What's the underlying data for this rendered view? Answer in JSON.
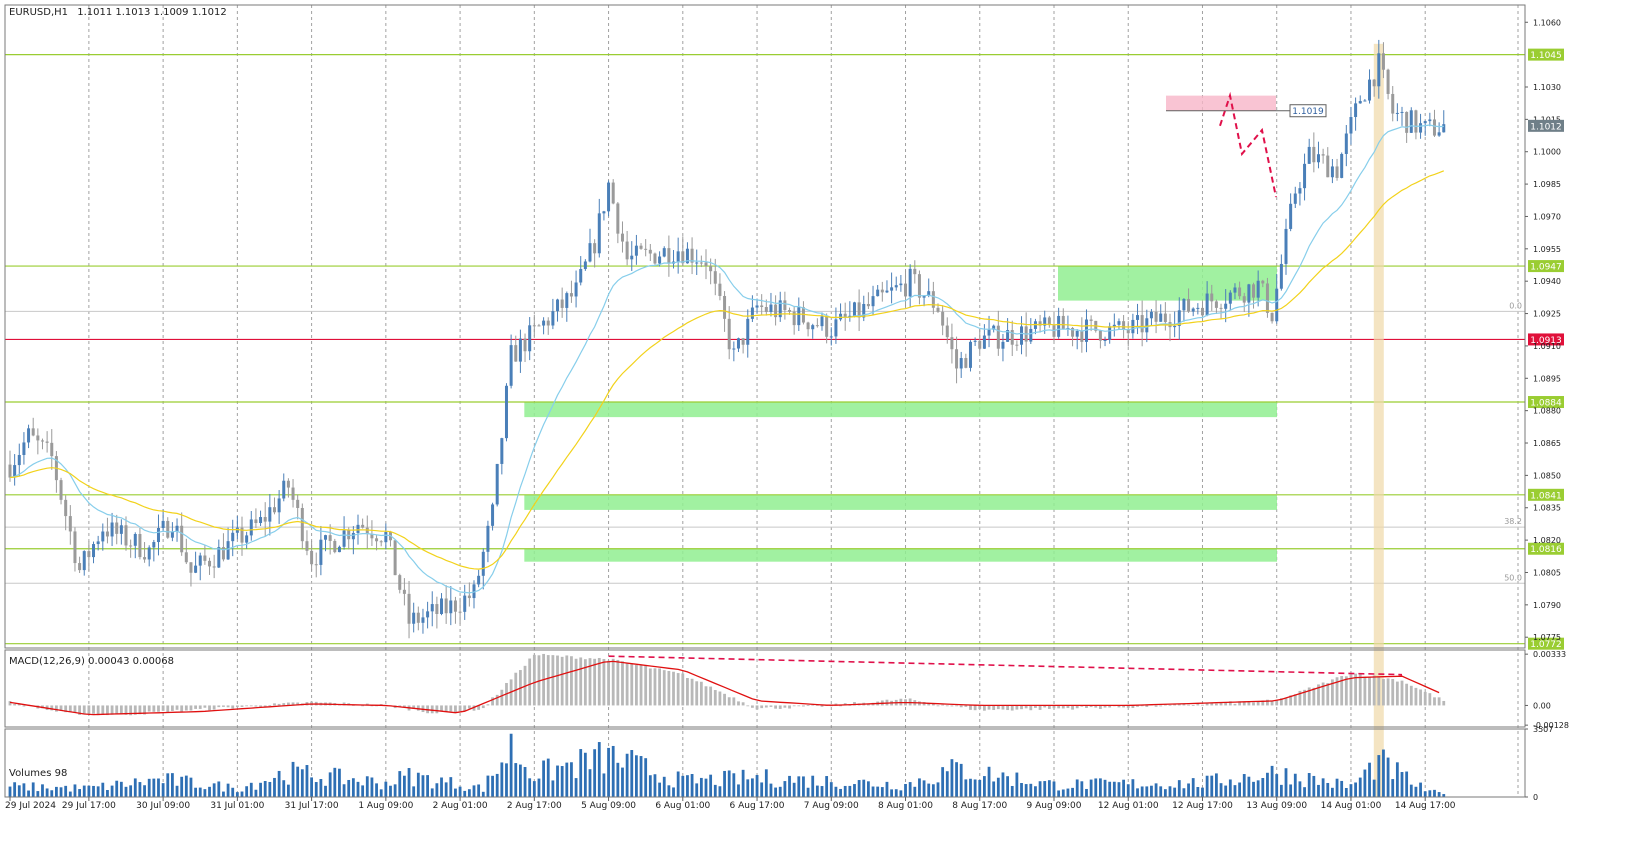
{
  "header": {
    "symbol": "EURUSD,H1",
    "ohlc": "1.1011 1.1013 1.1009 1.1012"
  },
  "colors": {
    "level_line": "#9acd32",
    "pivot_line": "#e0103a",
    "zone_fill": "#90ee90",
    "sell_zone_fill": "#f7b5c8",
    "forecast": "#e0104a",
    "ema_fast": "#87ceeb",
    "ema_slow": "#f2d21b",
    "bull_candle": "#4a7fb8",
    "bear_candle": "#9a9a9a",
    "macd_signal": "#e01010",
    "macd_hist": "#b8b8b8",
    "volume_bar": "#2e6fb4",
    "highlight_bar": "#f0d8a8",
    "price_badge": "#6f7f88"
  },
  "chart_data": [
    {
      "type": "candlestick",
      "title": "EURUSD,H1",
      "y_ticks": [
        "1.1060",
        "1.1045",
        "1.1030",
        "1.1015",
        "1.1012",
        "1.1000",
        "1.0985",
        "1.0970",
        "1.0955",
        "1.0940",
        "1.0925",
        "1.0910",
        "1.0895",
        "1.0880",
        "1.0865",
        "1.0850",
        "1.0835",
        "1.0820",
        "1.0805",
        "1.0790",
        "1.0775"
      ],
      "ylim": [
        1.077,
        1.1068
      ],
      "x_tick_labels": [
        "29 Jul 2024",
        "29 Jul 17:00",
        "30 Jul 09:00",
        "31 Jul 01:00",
        "31 Jul 17:00",
        "1 Aug 09:00",
        "2 Aug 01:00",
        "2 Aug 17:00",
        "5 Aug 09:00",
        "6 Aug 01:00",
        "6 Aug 17:00",
        "7 Aug 09:00",
        "8 Aug 01:00",
        "8 Aug 17:00",
        "9 Aug 09:00",
        "12 Aug 01:00",
        "12 Aug 17:00",
        "13 Aug 09:00",
        "14 Aug 01:00",
        "14 Aug 17:00"
      ],
      "levels": [
        {
          "label": "1.1045",
          "value": 1.1045,
          "kind": "resistance"
        },
        {
          "label": "1.0947",
          "value": 1.0947,
          "kind": "resistance"
        },
        {
          "label": "1.0913",
          "value": 1.0913,
          "kind": "pivot"
        },
        {
          "label": "1.0884",
          "value": 1.0884,
          "kind": "support"
        },
        {
          "label": "1.0841",
          "value": 1.0841,
          "kind": "support"
        },
        {
          "label": "1.0816",
          "value": 1.0816,
          "kind": "support"
        },
        {
          "label": "1.0772",
          "value": 1.0772,
          "kind": "support"
        }
      ],
      "current_price_label": "1.1012",
      "target_label": "1.1019",
      "fibo_labels": [
        "0.0",
        "38.2",
        "50.0"
      ],
      "zones": [
        {
          "kind": "support",
          "from": 1.0931,
          "to": 1.0947
        },
        {
          "kind": "support",
          "from": 1.0877,
          "to": 1.0884
        },
        {
          "kind": "support",
          "from": 1.0834,
          "to": 1.0841
        },
        {
          "kind": "support",
          "from": 1.081,
          "to": 1.0816
        },
        {
          "kind": "resistance",
          "from": 1.1019,
          "to": 1.1026
        }
      ],
      "forecast_path": [
        1.1012,
        1.1026,
        1.0999,
        1.101,
        1.0979
      ],
      "anchors": [
        {
          "x": "29 Jul 00:00",
          "price": 1.0855
        },
        {
          "x": "29 Jul 04:00",
          "price": 1.0868
        },
        {
          "x": "29 Jul 09:00",
          "price": 1.0858
        },
        {
          "x": "29 Jul 15:00",
          "price": 1.0806
        },
        {
          "x": "29 Jul 20:00",
          "price": 1.0826
        },
        {
          "x": "30 Jul 06:00",
          "price": 1.0815
        },
        {
          "x": "30 Jul 11:00",
          "price": 1.083
        },
        {
          "x": "30 Jul 15:00",
          "price": 1.0805
        },
        {
          "x": "31 Jul 06:00",
          "price": 1.0828
        },
        {
          "x": "31 Jul 12:00",
          "price": 1.0845
        },
        {
          "x": "31 Jul 17:00",
          "price": 1.0812
        },
        {
          "x": "1 Aug 03:00",
          "price": 1.0828
        },
        {
          "x": "1 Aug 09:00",
          "price": 1.0822
        },
        {
          "x": "1 Aug 14:00",
          "price": 1.0782
        },
        {
          "x": "1 Aug 22:00",
          "price": 1.0788
        },
        {
          "x": "2 Aug 04:00",
          "price": 1.0795
        },
        {
          "x": "2 Aug 08:00",
          "price": 1.0832
        },
        {
          "x": "2 Aug 12:00",
          "price": 1.0905
        },
        {
          "x": "2 Aug 15:00",
          "price": 1.0912
        },
        {
          "x": "5 Aug 02:00",
          "price": 1.0935
        },
        {
          "x": "5 Aug 06:00",
          "price": 1.0958
        },
        {
          "x": "5 Aug 09:00",
          "price": 1.0985
        },
        {
          "x": "5 Aug 13:00",
          "price": 1.095
        },
        {
          "x": "6 Aug 00:00",
          "price": 1.0955
        },
        {
          "x": "6 Aug 06:00",
          "price": 1.095
        },
        {
          "x": "6 Aug 12:00",
          "price": 1.0905
        },
        {
          "x": "6 Aug 17:00",
          "price": 1.0928
        },
        {
          "x": "7 Aug 00:00",
          "price": 1.0925
        },
        {
          "x": "7 Aug 09:00",
          "price": 1.0918
        },
        {
          "x": "7 Aug 17:00",
          "price": 1.0928
        },
        {
          "x": "8 Aug 02:00",
          "price": 1.094
        },
        {
          "x": "8 Aug 08:00",
          "price": 1.0928
        },
        {
          "x": "8 Aug 12:00",
          "price": 1.09
        },
        {
          "x": "8 Aug 17:00",
          "price": 1.0913
        },
        {
          "x": "9 Aug 09:00",
          "price": 1.0918
        },
        {
          "x": "12 Aug 01:00",
          "price": 1.0917
        },
        {
          "x": "12 Aug 17:00",
          "price": 1.093
        },
        {
          "x": "13 Aug 05:00",
          "price": 1.0938
        },
        {
          "x": "13 Aug 08:00",
          "price": 1.0925
        },
        {
          "x": "13 Aug 13:00",
          "price": 1.0982
        },
        {
          "x": "13 Aug 16:00",
          "price": 1.0998
        },
        {
          "x": "13 Aug 22:00",
          "price": 1.0992
        },
        {
          "x": "14 Aug 03:00",
          "price": 1.1025
        },
        {
          "x": "14 Aug 07:00",
          "price": 1.104
        },
        {
          "x": "14 Aug 10:00",
          "price": 1.1018
        },
        {
          "x": "14 Aug 17:00",
          "price": 1.101
        },
        {
          "x": "14 Aug 21:00",
          "price": 1.1012
        }
      ]
    },
    {
      "type": "macd",
      "title": "MACD(12,26,9) 0.00043 0.00068",
      "y_ticks": [
        "0.00333",
        "0.00",
        "-0.00128"
      ],
      "ylim": [
        -0.0014,
        0.0036
      ],
      "histogram_anchors": [
        {
          "x": "29 Jul 00:00",
          "value": 0.0002
        },
        {
          "x": "29 Jul 12:00",
          "value": -0.0005
        },
        {
          "x": "30 Jul 00:00",
          "value": -0.0006
        },
        {
          "x": "30 Jul 20:00",
          "value": -0.0002
        },
        {
          "x": "31 Jul 17:00",
          "value": 0.0002
        },
        {
          "x": "1 Aug 09:00",
          "value": 0.0
        },
        {
          "x": "1 Aug 20:00",
          "value": -0.0005
        },
        {
          "x": "2 Aug 06:00",
          "value": -0.0002
        },
        {
          "x": "2 Aug 17:00",
          "value": 0.0033
        },
        {
          "x": "5 Aug 09:00",
          "value": 0.003
        },
        {
          "x": "6 Aug 01:00",
          "value": 0.002
        },
        {
          "x": "6 Aug 17:00",
          "value": -0.0002
        },
        {
          "x": "7 Aug 09:00",
          "value": 0.0
        },
        {
          "x": "8 Aug 01:00",
          "value": 0.0004
        },
        {
          "x": "8 Aug 17:00",
          "value": -0.0003
        },
        {
          "x": "12 Aug 01:00",
          "value": -0.0001
        },
        {
          "x": "13 Aug 09:00",
          "value": 0.0003
        },
        {
          "x": "14 Aug 01:00",
          "value": 0.0021
        },
        {
          "x": "14 Aug 12:00",
          "value": 0.0016
        },
        {
          "x": "14 Aug 21:00",
          "value": 0.0003
        }
      ],
      "signal_anchors": [
        {
          "x": "29 Jul 00:00",
          "value": 0.0002
        },
        {
          "x": "29 Jul 17:00",
          "value": -0.0006
        },
        {
          "x": "30 Jul 17:00",
          "value": -0.0004
        },
        {
          "x": "31 Jul 17:00",
          "value": 0.0001
        },
        {
          "x": "1 Aug 09:00",
          "value": 0.0
        },
        {
          "x": "2 Aug 01:00",
          "value": -0.0005
        },
        {
          "x": "2 Aug 17:00",
          "value": 0.0015
        },
        {
          "x": "5 Aug 09:00",
          "value": 0.0029
        },
        {
          "x": "6 Aug 01:00",
          "value": 0.0023
        },
        {
          "x": "6 Aug 17:00",
          "value": 0.0003
        },
        {
          "x": "7 Aug 09:00",
          "value": 0.0
        },
        {
          "x": "8 Aug 01:00",
          "value": 0.0002
        },
        {
          "x": "8 Aug 17:00",
          "value": 0.0
        },
        {
          "x": "12 Aug 01:00",
          "value": 0.0
        },
        {
          "x": "13 Aug 09:00",
          "value": 0.0003
        },
        {
          "x": "14 Aug 01:00",
          "value": 0.0018
        },
        {
          "x": "14 Aug 12:00",
          "value": 0.0019
        },
        {
          "x": "14 Aug 21:00",
          "value": 0.0007
        }
      ],
      "divergence_line": [
        {
          "x": "5 Aug 09:00",
          "value": 0.0032
        },
        {
          "x": "14 Aug 12:00",
          "value": 0.002
        }
      ]
    },
    {
      "type": "bar",
      "title": "Volumes 98",
      "y_ticks": [
        "3507",
        "0"
      ],
      "ylim": [
        0,
        3507
      ],
      "anchors": [
        {
          "x": "29 Jul 00:00",
          "value": 600
        },
        {
          "x": "29 Jul 17:00",
          "value": 500
        },
        {
          "x": "30 Jul 09:00",
          "value": 1000
        },
        {
          "x": "31 Jul 01:00",
          "value": 500
        },
        {
          "x": "31 Jul 12:00",
          "value": 1400
        },
        {
          "x": "1 Aug 09:00",
          "value": 800
        },
        {
          "x": "1 Aug 14:00",
          "value": 1200
        },
        {
          "x": "2 Aug 06:00",
          "value": 500
        },
        {
          "x": "2 Aug 12:00",
          "value": 2800
        },
        {
          "x": "2 Aug 17:00",
          "value": 1300
        },
        {
          "x": "5 Aug 09:00",
          "value": 2300
        },
        {
          "x": "6 Aug 01:00",
          "value": 900
        },
        {
          "x": "6 Aug 17:00",
          "value": 1100
        },
        {
          "x": "7 Aug 09:00",
          "value": 900
        },
        {
          "x": "8 Aug 01:00",
          "value": 700
        },
        {
          "x": "8 Aug 12:00",
          "value": 1600
        },
        {
          "x": "9 Aug 09:00",
          "value": 700
        },
        {
          "x": "12 Aug 17:00",
          "value": 800
        },
        {
          "x": "13 Aug 09:00",
          "value": 1400
        },
        {
          "x": "14 Aug 01:00",
          "value": 600
        },
        {
          "x": "14 Aug 07:00",
          "value": 2000
        },
        {
          "x": "14 Aug 17:00",
          "value": 400
        },
        {
          "x": "14 Aug 21:00",
          "value": 150
        }
      ]
    }
  ]
}
